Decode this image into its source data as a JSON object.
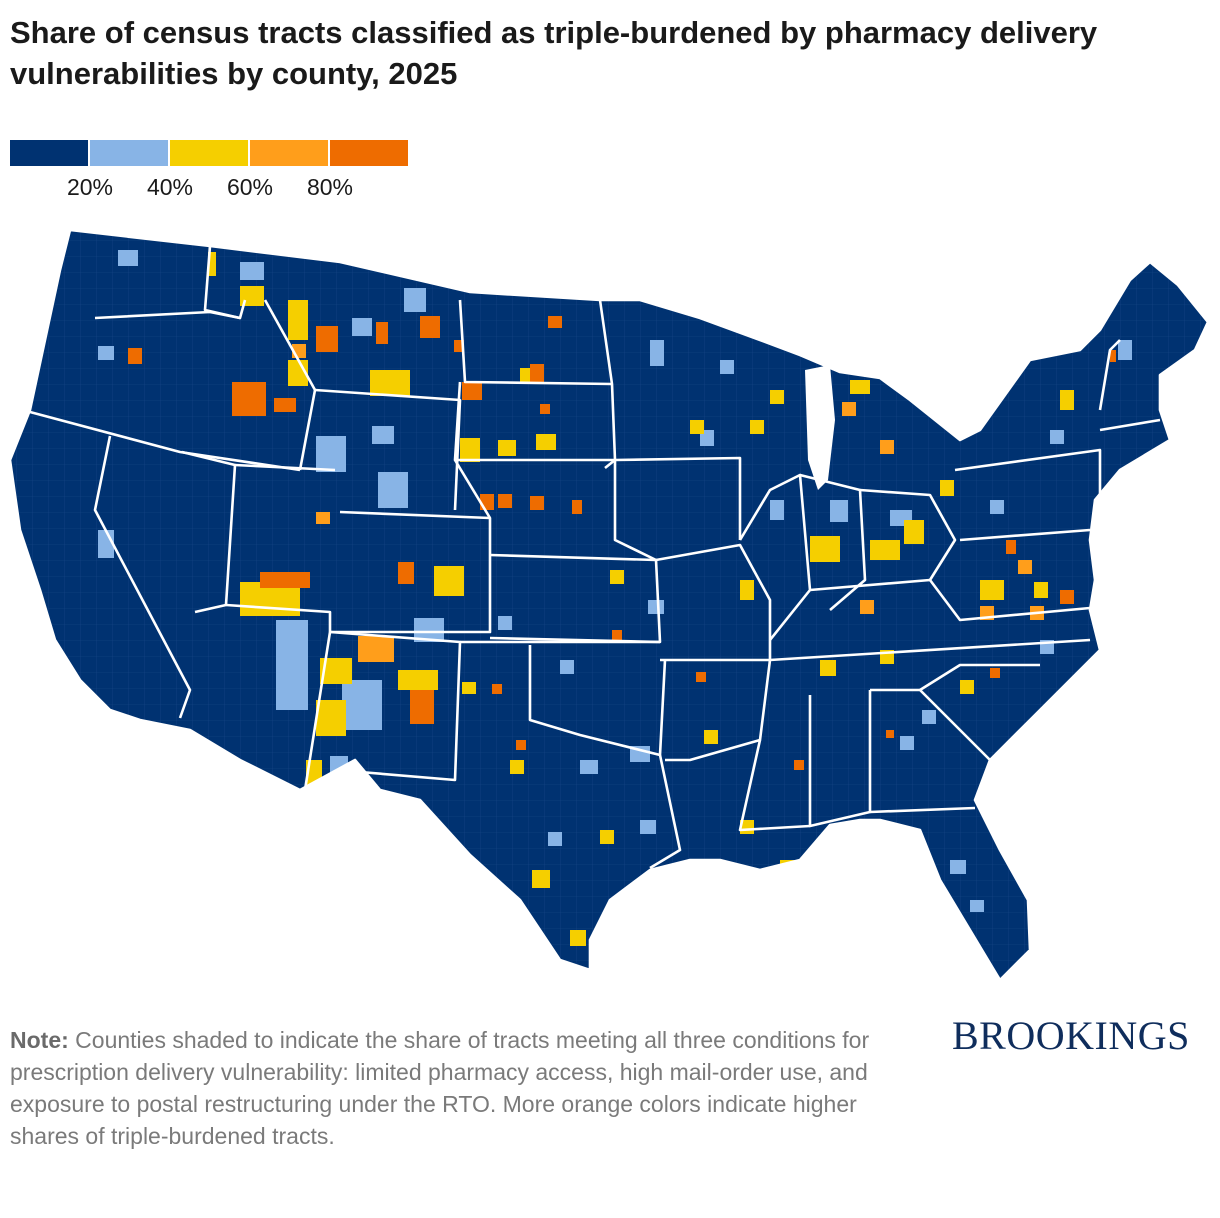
{
  "title": "Share of census tracts classified as triple-burdened by pharmacy delivery vulnerabilities by county, 2025",
  "legend": {
    "colors": [
      "#003271",
      "#88b4e6",
      "#f5cf00",
      "#ff9e1b",
      "#ee6c00"
    ],
    "ticks": [
      "20%",
      "40%",
      "60%",
      "80%"
    ]
  },
  "map": {
    "base_color": "#003271",
    "border_color": "#ffffff"
  },
  "note": {
    "label": "Note:",
    "text": " Counties shaded to indicate the share of tracts meeting all three conditions for prescription delivery vulnerability: limited pharmacy access, high mail-order use, and exposure to postal restructuring under the RTO. More orange colors indicate higher shares of triple-burdened tracts."
  },
  "logo": "BROOKINGS"
}
